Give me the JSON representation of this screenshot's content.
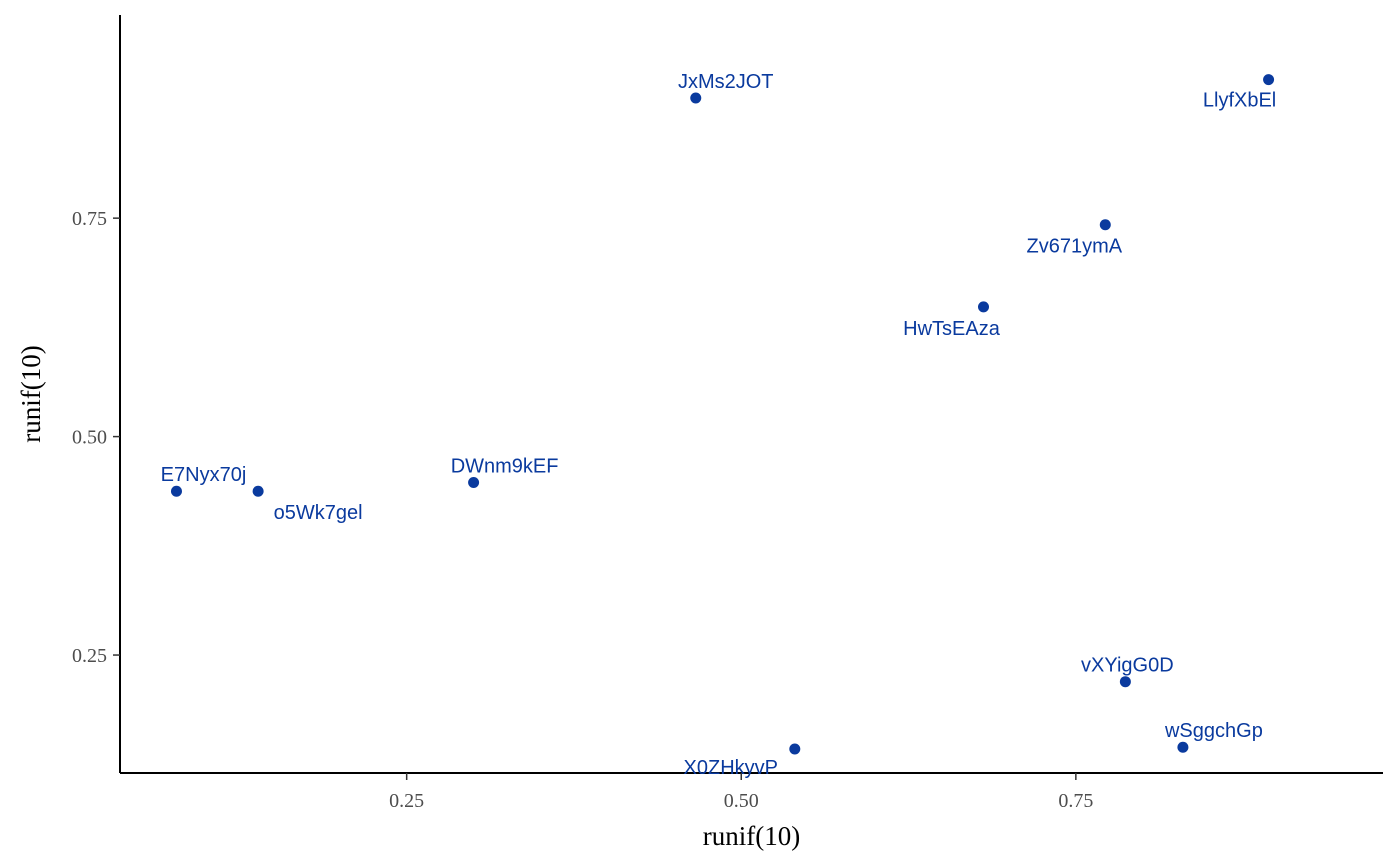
{
  "chart_data": {
    "type": "scatter",
    "xlabel": "runif(10)",
    "ylabel": "runif(10)",
    "xlim": [
      0.0358,
      0.9795
    ],
    "ylim": [
      0.115,
      0.9825
    ],
    "x_ticks": [
      0.25,
      0.5,
      0.75
    ],
    "x_tick_labels": [
      "0.25",
      "0.50",
      "0.75"
    ],
    "y_ticks": [
      0.25,
      0.5,
      0.75
    ],
    "y_tick_labels": [
      "0.25",
      "0.50",
      "0.75"
    ],
    "grid": false,
    "legend": "none",
    "colors": {
      "points": "#0a3a9e",
      "labels": "#0a3a9e",
      "axis": "#000000"
    },
    "points": [
      {
        "label": "JxMs2JOT",
        "x": 0.466,
        "y": 0.8875,
        "label_pos": "above"
      },
      {
        "label": "LlyfXbEl",
        "x": 0.894,
        "y": 0.9085,
        "label_pos": "below-left"
      },
      {
        "label": "Zv671ymA",
        "x": 0.772,
        "y": 0.7425,
        "label_pos": "below-left"
      },
      {
        "label": "HwTsEAza",
        "x": 0.681,
        "y": 0.6485,
        "label_pos": "below-left"
      },
      {
        "label": "DWnm9kEF",
        "x": 0.3,
        "y": 0.4475,
        "label_pos": "above"
      },
      {
        "label": "E7Nyx70j",
        "x": 0.078,
        "y": 0.4375,
        "label_pos": "above-right"
      },
      {
        "label": "o5Wk7gel",
        "x": 0.139,
        "y": 0.4375,
        "label_pos": "below-right"
      },
      {
        "label": "vXYigG0D",
        "x": 0.787,
        "y": 0.2195,
        "label_pos": "above-right"
      },
      {
        "label": "wSggchGp",
        "x": 0.83,
        "y": 0.1445,
        "label_pos": "above-right"
      },
      {
        "label": "X0ZHkyvP",
        "x": 0.54,
        "y": 0.1425,
        "label_pos": "below-left"
      }
    ]
  }
}
